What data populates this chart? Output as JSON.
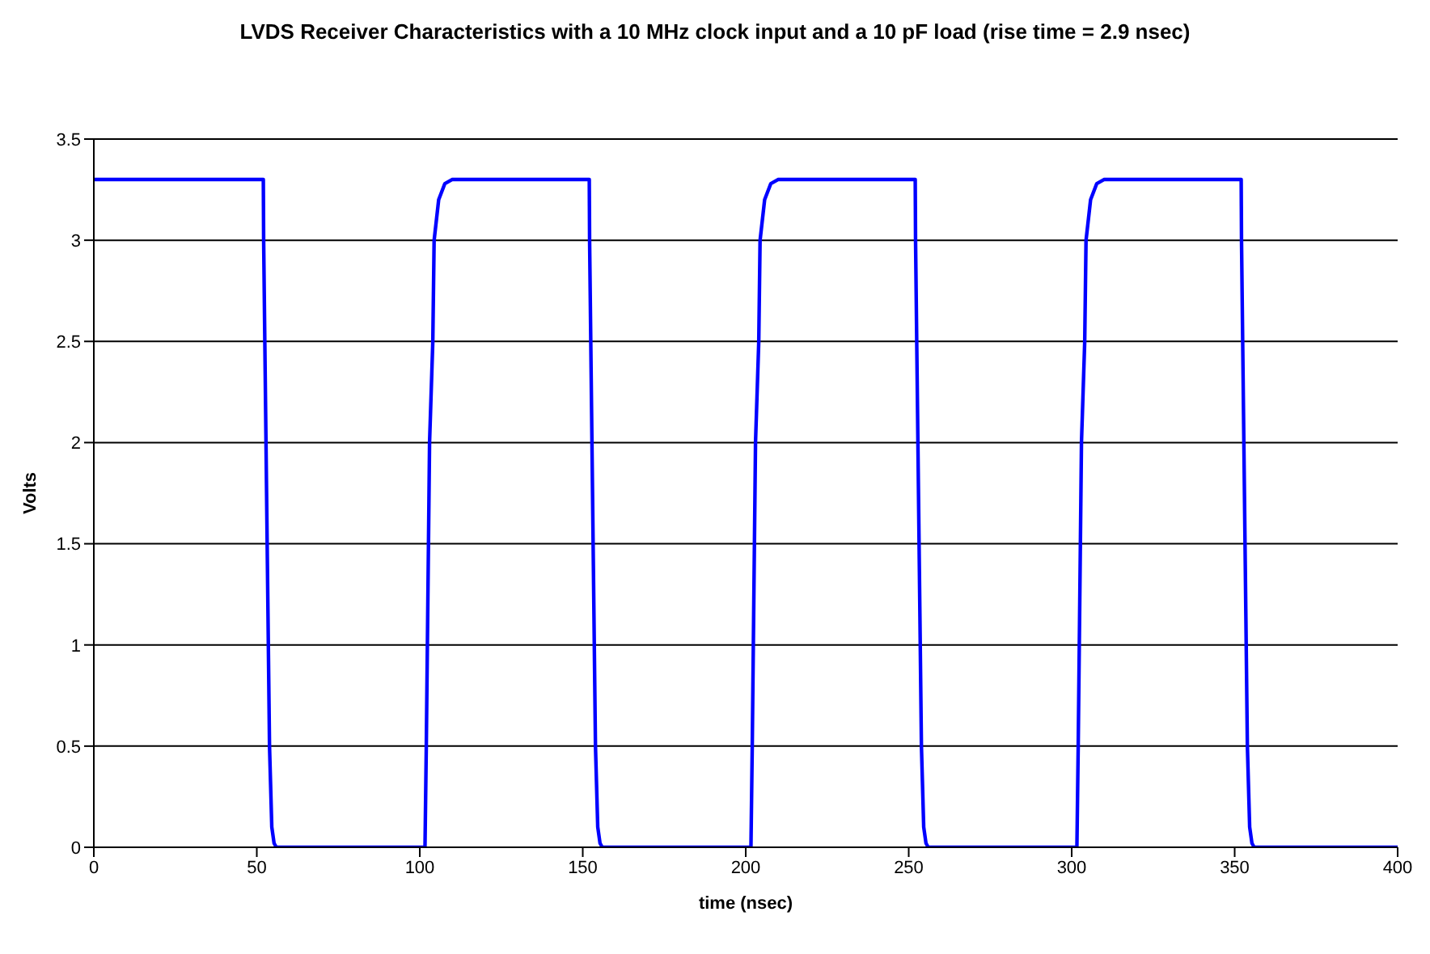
{
  "chart_data": {
    "type": "line",
    "title": "LVDS Receiver Characteristics with a 10 MHz clock input and a 10 pF load (rise time = 2.9 nsec)",
    "xlabel": "time (nsec)",
    "ylabel": "Volts",
    "xlim": [
      0,
      400
    ],
    "xticks": [
      0,
      50,
      100,
      150,
      200,
      250,
      300,
      350,
      400
    ],
    "ylim": [
      0,
      3.5
    ],
    "yticks": [
      0,
      0.5,
      1,
      1.5,
      2,
      2.5,
      3,
      3.5
    ],
    "grid": "y",
    "legend": false,
    "marker": "none",
    "line_style": "solid",
    "series": [
      {
        "color": "#0000ff",
        "x": [
          0,
          52,
          52.1,
          53.9,
          54.6,
          55.3,
          56,
          101.6,
          102,
          103,
          104,
          104.4,
          105.8,
          107.7,
          109.9,
          152,
          152.1,
          153.9,
          154.6,
          155.3,
          156,
          201.6,
          202,
          203,
          204,
          204.4,
          205.8,
          207.7,
          209.9,
          252,
          252.1,
          253.9,
          254.6,
          255.3,
          256,
          301.6,
          302,
          303,
          304,
          304.4,
          305.8,
          307.7,
          309.9,
          352,
          352.1,
          353.9,
          354.6,
          355.3,
          356,
          400
        ],
        "values": [
          3.3,
          3.3,
          3,
          0.5,
          0.1,
          0.02,
          0,
          0,
          0.5,
          2,
          2.5,
          3,
          3.2,
          3.28,
          3.3,
          3.3,
          3,
          0.5,
          0.1,
          0.02,
          0,
          0,
          0.5,
          2,
          2.5,
          3,
          3.2,
          3.28,
          3.3,
          3.3,
          3,
          0.5,
          0.1,
          0.02,
          0,
          0,
          0.5,
          2,
          2.5,
          3,
          3.2,
          3.28,
          3.3,
          3.3,
          3,
          0.5,
          0.1,
          0.02,
          0,
          0
        ]
      }
    ]
  }
}
